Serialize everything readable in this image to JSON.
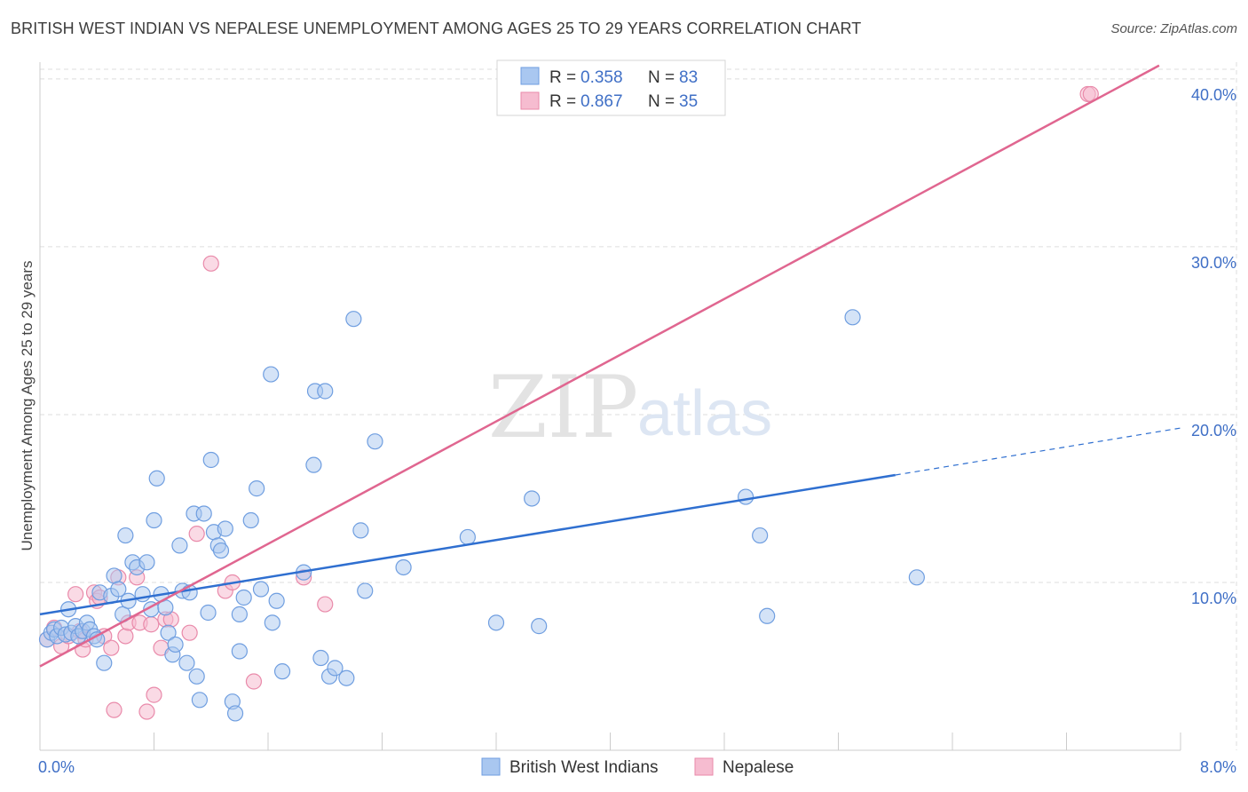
{
  "header": {
    "title": "BRITISH WEST INDIAN VS NEPALESE UNEMPLOYMENT AMONG AGES 25 TO 29 YEARS CORRELATION CHART",
    "source": "Source: ZipAtlas.com"
  },
  "watermark": {
    "zip": "ZIP",
    "atlas": "atlas"
  },
  "colors": {
    "blue_fill": "#a9c7f0",
    "blue_stroke": "#6f9ee0",
    "blue_line": "#2f6fd0",
    "pink_fill": "#f6bcd0",
    "pink_stroke": "#e98aaa",
    "pink_line": "#e06690",
    "axis_text": "#3f6fc6",
    "grid": "#dddddd"
  },
  "legend": {
    "rows": [
      {
        "r_label": "R = ",
        "r_value": "0.358",
        "n_label": "N = ",
        "n_value": "83"
      },
      {
        "r_label": "R = ",
        "r_value": "0.867",
        "n_label": "N = ",
        "n_value": "35"
      }
    ]
  },
  "chart_data": {
    "type": "scatter",
    "title": "BRITISH WEST INDIAN VS NEPALESE UNEMPLOYMENT AMONG AGES 25 TO 29 YEARS CORRELATION CHART",
    "xlabel": "",
    "ylabel": "Unemployment Among Ages 25 to 29 years",
    "xlim": [
      0,
      8.0
    ],
    "ylim": [
      0,
      41
    ],
    "x_tick_labels": [
      "0.0%",
      "8.0%"
    ],
    "y_ticks": [
      10,
      20,
      30,
      40
    ],
    "y_tick_labels": [
      "10.0%",
      "20.0%",
      "30.0%",
      "40.0%"
    ],
    "series": [
      {
        "name": "British West Indians",
        "r": 0.358,
        "n": 83,
        "trend": {
          "x0": 0.0,
          "y0": 8.1,
          "x1": 6.0,
          "y1": 16.4,
          "dashed_to_x": 8.0,
          "dashed_to_y": 19.2
        },
        "points": [
          [
            0.05,
            6.6
          ],
          [
            0.08,
            7.0
          ],
          [
            0.1,
            7.2
          ],
          [
            0.12,
            6.8
          ],
          [
            0.15,
            7.3
          ],
          [
            0.18,
            6.9
          ],
          [
            0.2,
            8.4
          ],
          [
            0.22,
            7.0
          ],
          [
            0.25,
            7.4
          ],
          [
            0.27,
            6.8
          ],
          [
            0.3,
            7.1
          ],
          [
            0.33,
            7.6
          ],
          [
            0.35,
            7.2
          ],
          [
            0.38,
            6.8
          ],
          [
            0.4,
            6.6
          ],
          [
            0.42,
            9.4
          ],
          [
            0.45,
            5.2
          ],
          [
            0.5,
            9.2
          ],
          [
            0.52,
            10.4
          ],
          [
            0.55,
            9.6
          ],
          [
            0.58,
            8.1
          ],
          [
            0.6,
            12.8
          ],
          [
            0.62,
            8.9
          ],
          [
            0.65,
            11.2
          ],
          [
            0.68,
            10.9
          ],
          [
            0.72,
            9.3
          ],
          [
            0.75,
            11.2
          ],
          [
            0.78,
            8.4
          ],
          [
            0.8,
            13.7
          ],
          [
            0.82,
            16.2
          ],
          [
            0.85,
            9.3
          ],
          [
            0.88,
            8.5
          ],
          [
            0.9,
            7.0
          ],
          [
            0.93,
            5.7
          ],
          [
            0.95,
            6.3
          ],
          [
            0.98,
            12.2
          ],
          [
            1.0,
            9.5
          ],
          [
            1.03,
            5.2
          ],
          [
            1.05,
            9.4
          ],
          [
            1.08,
            14.1
          ],
          [
            1.1,
            4.4
          ],
          [
            1.12,
            3.0
          ],
          [
            1.15,
            14.1
          ],
          [
            1.18,
            8.2
          ],
          [
            1.2,
            17.3
          ],
          [
            1.22,
            13.0
          ],
          [
            1.25,
            12.2
          ],
          [
            1.27,
            11.9
          ],
          [
            1.3,
            13.2
          ],
          [
            1.35,
            2.9
          ],
          [
            1.37,
            2.2
          ],
          [
            1.4,
            5.9
          ],
          [
            1.4,
            8.1
          ],
          [
            1.43,
            9.1
          ],
          [
            1.48,
            13.7
          ],
          [
            1.52,
            15.6
          ],
          [
            1.55,
            9.6
          ],
          [
            1.62,
            22.4
          ],
          [
            1.63,
            7.6
          ],
          [
            1.66,
            8.9
          ],
          [
            1.7,
            4.7
          ],
          [
            1.85,
            10.6
          ],
          [
            1.92,
            17.0
          ],
          [
            1.93,
            21.4
          ],
          [
            1.97,
            5.5
          ],
          [
            2.0,
            21.4
          ],
          [
            2.03,
            4.4
          ],
          [
            2.07,
            4.9
          ],
          [
            2.15,
            4.3
          ],
          [
            2.2,
            25.7
          ],
          [
            2.25,
            13.1
          ],
          [
            2.28,
            9.5
          ],
          [
            2.35,
            18.4
          ],
          [
            2.55,
            10.9
          ],
          [
            3.0,
            12.7
          ],
          [
            3.2,
            7.6
          ],
          [
            3.45,
            15.0
          ],
          [
            3.5,
            7.4
          ],
          [
            4.95,
            15.1
          ],
          [
            5.05,
            12.8
          ],
          [
            5.1,
            8.0
          ],
          [
            5.7,
            25.8
          ],
          [
            6.15,
            10.3
          ]
        ]
      },
      {
        "name": "Nepalese",
        "r": 0.867,
        "n": 35,
        "trend": {
          "x0": 0.0,
          "y0": 5.0,
          "x1": 7.85,
          "y1": 40.8
        },
        "points": [
          [
            0.05,
            6.6
          ],
          [
            0.1,
            7.3
          ],
          [
            0.15,
            6.2
          ],
          [
            0.2,
            6.8
          ],
          [
            0.25,
            9.3
          ],
          [
            0.28,
            7.1
          ],
          [
            0.3,
            6.0
          ],
          [
            0.32,
            6.6
          ],
          [
            0.38,
            9.4
          ],
          [
            0.4,
            8.9
          ],
          [
            0.42,
            9.1
          ],
          [
            0.45,
            6.8
          ],
          [
            0.5,
            6.1
          ],
          [
            0.52,
            2.4
          ],
          [
            0.55,
            10.3
          ],
          [
            0.6,
            6.8
          ],
          [
            0.62,
            7.6
          ],
          [
            0.68,
            10.3
          ],
          [
            0.7,
            7.6
          ],
          [
            0.75,
            2.3
          ],
          [
            0.78,
            7.5
          ],
          [
            0.8,
            3.3
          ],
          [
            0.85,
            6.1
          ],
          [
            0.88,
            7.8
          ],
          [
            0.92,
            7.8
          ],
          [
            1.05,
            7.0
          ],
          [
            1.1,
            12.9
          ],
          [
            1.2,
            29.0
          ],
          [
            1.3,
            9.5
          ],
          [
            1.35,
            10.0
          ],
          [
            1.5,
            4.1
          ],
          [
            1.85,
            10.3
          ],
          [
            2.0,
            8.7
          ],
          [
            7.35,
            39.1
          ],
          [
            7.37,
            39.1
          ]
        ]
      }
    ],
    "legend_position": "top-center"
  }
}
